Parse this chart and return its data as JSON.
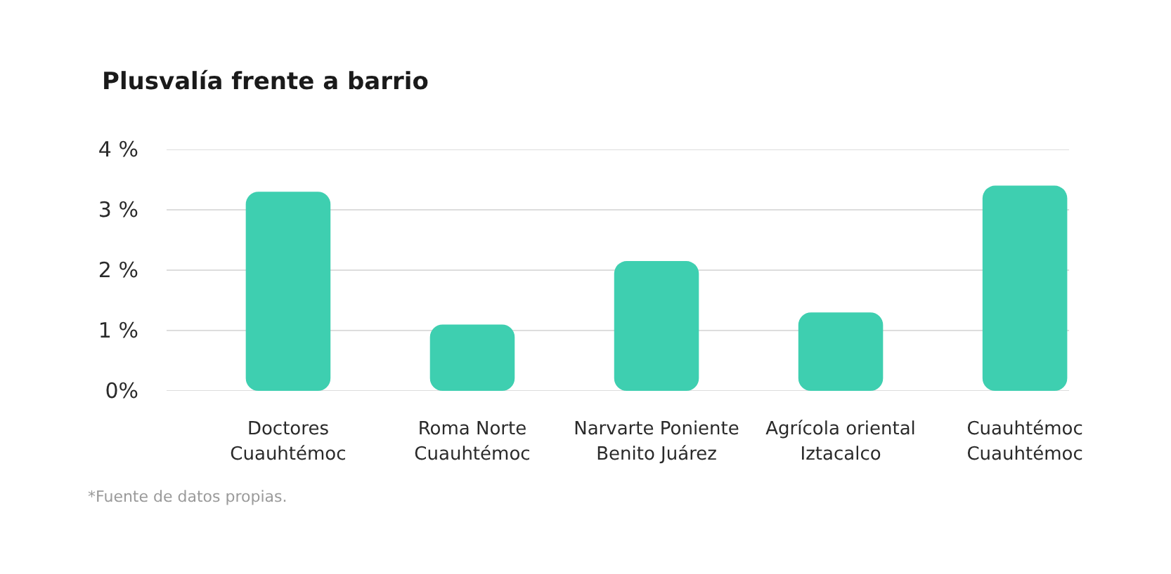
{
  "chart_data": {
    "type": "bar",
    "title": "Plusvalía frente a barrio",
    "categories": [
      "Doctores\nCuauhtémoc",
      "Roma Norte\nCuauhtémoc",
      "Narvarte Poniente\nBenito Juárez",
      "Agrícola oriental\nIztacalco",
      "Cuauhtémoc\nCuauhtémoc"
    ],
    "values": [
      3.3,
      1.1,
      2.15,
      1.3,
      3.4
    ],
    "color": "#3ecfb0",
    "ylim": [
      0,
      4
    ],
    "yticks": [
      {
        "value": 0,
        "label": "0%"
      },
      {
        "value": 1,
        "label": "1 %"
      },
      {
        "value": 2,
        "label": "2 %"
      },
      {
        "value": 3,
        "label": "3 %"
      },
      {
        "value": 4,
        "label": "4 %"
      }
    ],
    "grid": "y",
    "annotations": [
      "*Fuente de datos propias."
    ]
  }
}
